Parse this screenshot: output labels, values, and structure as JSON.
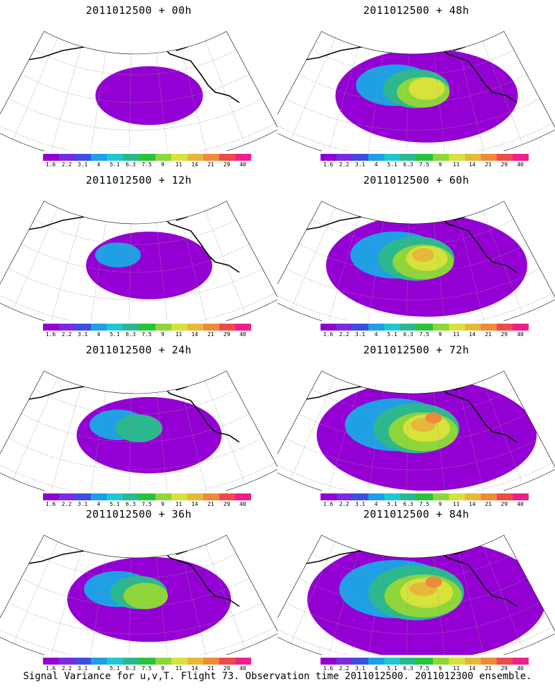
{
  "panels": [
    {
      "title": "2011012500 + 00h"
    },
    {
      "title": "2011012500 + 48h"
    },
    {
      "title": "2011012500 + 12h"
    },
    {
      "title": "2011012500 + 60h"
    },
    {
      "title": "2011012500 + 24h"
    },
    {
      "title": "2011012500 + 72h"
    },
    {
      "title": "2011012500 + 36h"
    },
    {
      "title": "2011012500 + 84h"
    }
  ],
  "colorbar": {
    "colors": [
      "#9400d3",
      "#7a2be2",
      "#3c4fe0",
      "#1e9fe6",
      "#1ec8d2",
      "#2bb88e",
      "#27c43a",
      "#8ed63a",
      "#d7e23b",
      "#e6b83a",
      "#ef8a3a",
      "#ef4a4a",
      "#f01e8c"
    ],
    "labels": [
      "1.6",
      "2.2",
      "3.1",
      "4",
      "5.1",
      "6.3",
      "7.5",
      "9",
      "11",
      "14",
      "21",
      "29",
      "40"
    ]
  },
  "footer": "Signal Variance for u,v,T. Flight 73. Observation time 2011012500. 2011012300 ensemble."
}
